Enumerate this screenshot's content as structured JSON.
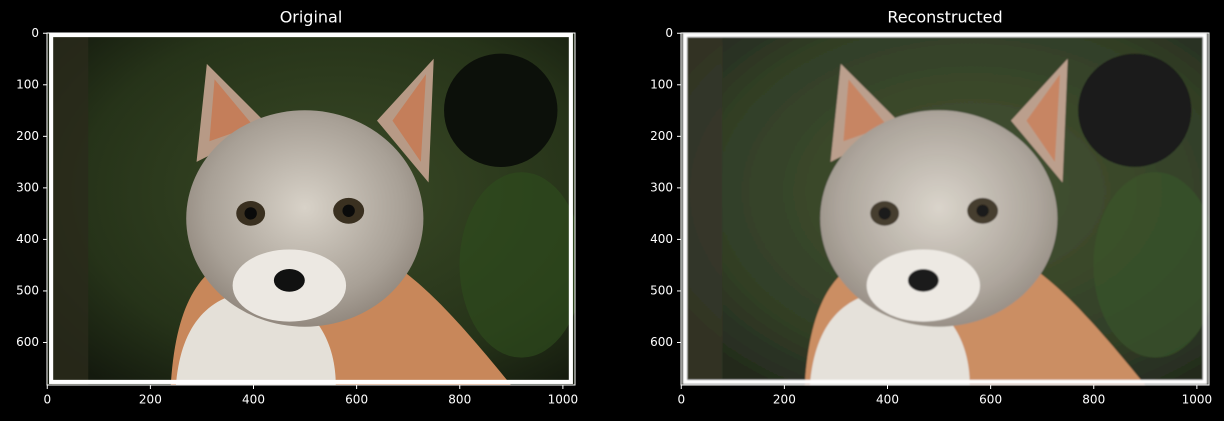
{
  "chart_data": [
    {
      "type": "image",
      "title": "Original",
      "xlim": [
        -0.5,
        1023.5
      ],
      "ylim": [
        682.5,
        -0.5
      ],
      "xticks": [
        0,
        200,
        400,
        600,
        800,
        1000
      ],
      "yticks": [
        0,
        100,
        200,
        300,
        400,
        500,
        600
      ]
    },
    {
      "type": "image",
      "title": "Reconstructed",
      "xlim": [
        -0.5,
        1023.5
      ],
      "ylim": [
        682.5,
        -0.5
      ],
      "xticks": [
        0,
        200,
        400,
        600,
        800,
        1000
      ],
      "yticks": [
        0,
        100,
        200,
        300,
        400,
        500,
        600
      ]
    }
  ]
}
